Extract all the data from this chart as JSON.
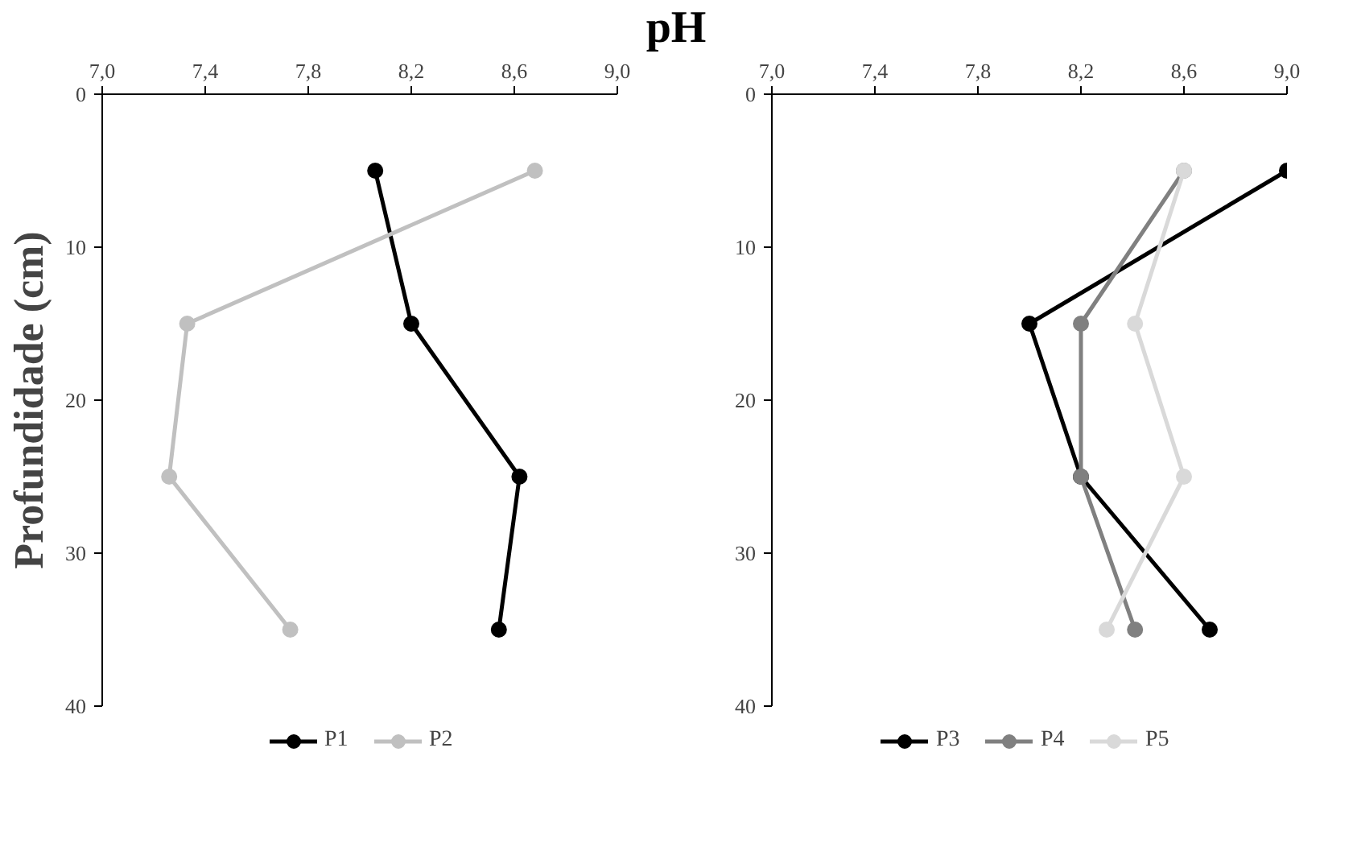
{
  "chart_data": [
    {
      "type": "line",
      "xlabel": "pH",
      "ylabel": "Profundidade (cm)",
      "xlim": [
        7.0,
        9.0
      ],
      "ylim": [
        40,
        0
      ],
      "xticks": [
        {
          "value": 7.0,
          "label": "7,0"
        },
        {
          "value": 7.4,
          "label": "7,4"
        },
        {
          "value": 7.8,
          "label": "7,8"
        },
        {
          "value": 8.2,
          "label": "8,2"
        },
        {
          "value": 8.6,
          "label": "8,6"
        },
        {
          "value": 9.0,
          "label": "9,0"
        }
      ],
      "yticks": [
        0,
        10,
        20,
        30,
        40
      ],
      "grid": false,
      "legend": "bottom",
      "marker": "circle",
      "line_style": "solid",
      "series": [
        {
          "name": "P1",
          "color": "#000000",
          "x": [
            8.06,
            8.2,
            8.62,
            8.54
          ],
          "values": [
            5,
            15,
            25,
            35
          ]
        },
        {
          "name": "P2",
          "color": "#c0c0c0",
          "x": [
            8.68,
            7.33,
            7.26,
            7.73
          ],
          "values": [
            5,
            15,
            25,
            35
          ]
        }
      ]
    },
    {
      "type": "line",
      "xlim": [
        7.0,
        9.0
      ],
      "ylim": [
        40,
        0
      ],
      "xticks": [
        {
          "value": 7.0,
          "label": "7,0"
        },
        {
          "value": 7.4,
          "label": "7,4"
        },
        {
          "value": 7.8,
          "label": "7,8"
        },
        {
          "value": 8.2,
          "label": "8,2"
        },
        {
          "value": 8.6,
          "label": "8,6"
        },
        {
          "value": 9.0,
          "label": "9,0"
        }
      ],
      "yticks": [
        0,
        10,
        20,
        30,
        40
      ],
      "grid": false,
      "legend": "bottom",
      "marker": "circle",
      "line_style": "solid",
      "series": [
        {
          "name": "P3",
          "color": "#000000",
          "x": [
            9.0,
            8.0,
            8.2,
            8.7
          ],
          "values": [
            5,
            15,
            25,
            35
          ]
        },
        {
          "name": "P4",
          "color": "#808080",
          "x": [
            8.6,
            8.2,
            8.2,
            8.41
          ],
          "values": [
            5,
            15,
            25,
            35
          ]
        },
        {
          "name": "P5",
          "color": "#d9d9d9",
          "x": [
            8.6,
            8.41,
            8.6,
            8.3
          ],
          "values": [
            5,
            15,
            25,
            35
          ]
        }
      ]
    }
  ]
}
